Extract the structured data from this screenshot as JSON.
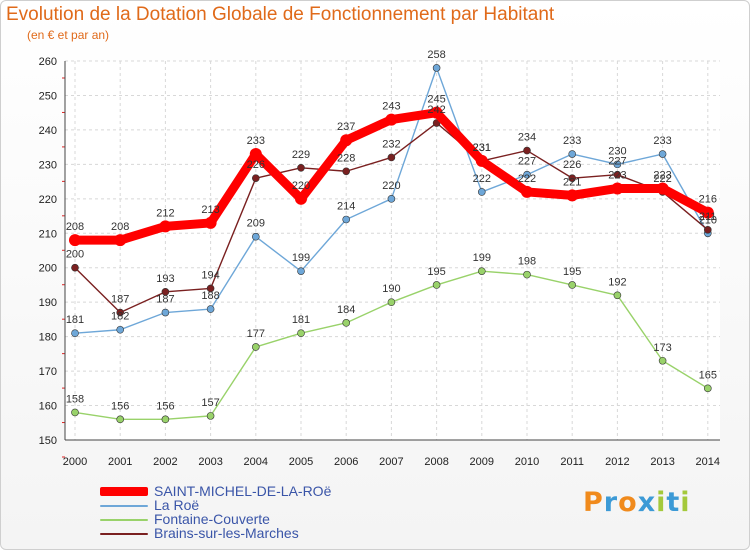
{
  "title": "Evolution de la Dotation Globale de Fonctionnement par Habitant",
  "subtitle": "(en € et par an)",
  "logo": {
    "letters": [
      "P",
      "r",
      "o",
      "x",
      "i",
      "t",
      "i"
    ],
    "colors": [
      "#f08a1c",
      "#3c9ad6",
      "#f08a1c",
      "#3c9ad6",
      "#a4c93b",
      "#3c9ad6",
      "#a4c93b"
    ]
  },
  "chart_data": {
    "type": "line",
    "x": [
      "2000",
      "2001",
      "2002",
      "2003",
      "2004",
      "2005",
      "2006",
      "2007",
      "2008",
      "2009",
      "2010",
      "2011",
      "2012",
      "2013",
      "2014"
    ],
    "ylim": [
      150,
      260
    ],
    "yticks": [
      150,
      160,
      170,
      180,
      190,
      200,
      210,
      220,
      230,
      240,
      250,
      260
    ],
    "grid": true,
    "legend_position": "bottom-left",
    "series": [
      {
        "name": "SAINT-MICHEL-DE-LA-ROë",
        "color": "#ff0000",
        "values": [
          208,
          208,
          212,
          213,
          233,
          220,
          237,
          243,
          245,
          231,
          222,
          221,
          223,
          223,
          216
        ]
      },
      {
        "name": "La Roë",
        "color": "#6ea7d8",
        "values": [
          181,
          182,
          187,
          188,
          209,
          199,
          214,
          220,
          258,
          222,
          227,
          233,
          230,
          233,
          210
        ]
      },
      {
        "name": "Fontaine-Couverte",
        "color": "#99d26a",
        "values": [
          158,
          156,
          156,
          157,
          177,
          181,
          184,
          190,
          195,
          199,
          198,
          195,
          192,
          173,
          165
        ]
      },
      {
        "name": "Brains-sur-les-Marches",
        "color": "#7a2020",
        "values": [
          200,
          187,
          193,
          194,
          226,
          229,
          228,
          232,
          242,
          231,
          234,
          226,
          227,
          222,
          211
        ]
      }
    ]
  }
}
